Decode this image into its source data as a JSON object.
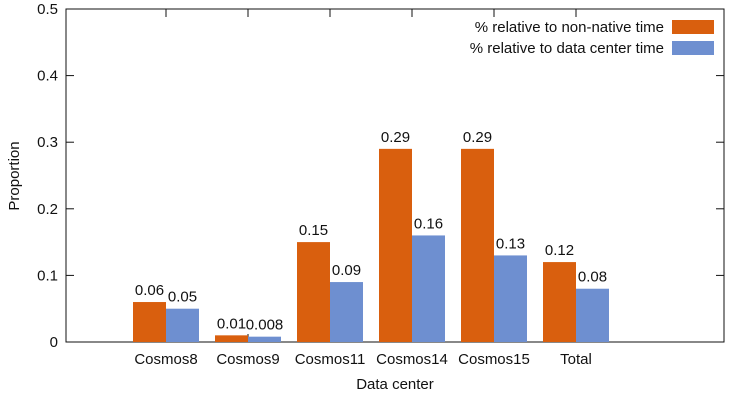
{
  "chart_data": {
    "type": "bar",
    "xlabel": "Data center",
    "ylabel": "Proportion",
    "ylim": [
      0,
      0.5
    ],
    "yticks": [
      "0",
      "0.1",
      "0.2",
      "0.3",
      "0.4",
      "0.5"
    ],
    "ytick_values": [
      0,
      0.1,
      0.2,
      0.3,
      0.4,
      0.5
    ],
    "categories": [
      "Cosmos8",
      "Cosmos9",
      "Cosmos11",
      "Cosmos14",
      "Cosmos15",
      "Total"
    ],
    "legend_position": "top-right",
    "grid": false,
    "series": [
      {
        "name": "% relative to non-native time",
        "color": "#d95f0e",
        "values": [
          0.06,
          0.01,
          0.15,
          0.29,
          0.29,
          0.12
        ],
        "labels": [
          "0.06",
          "0.01",
          "0.15",
          "0.29",
          "0.29",
          "0.12"
        ]
      },
      {
        "name": "% relative to data center time",
        "color": "#6e8fd0",
        "values": [
          0.05,
          0.008,
          0.09,
          0.16,
          0.13,
          0.08
        ],
        "labels": [
          "0.05",
          "0.008",
          "0.09",
          "0.16",
          "0.13",
          "0.08"
        ]
      }
    ]
  }
}
